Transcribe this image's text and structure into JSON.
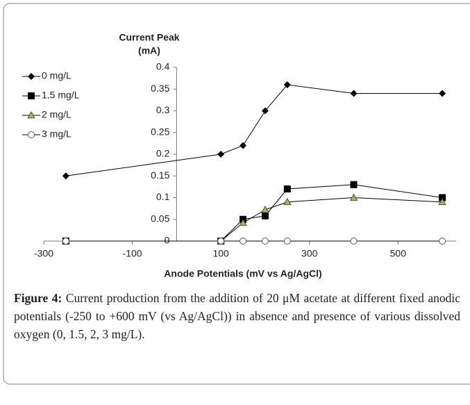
{
  "chart_data": {
    "type": "line",
    "ylabel_lines": [
      "Current Peak",
      "(mA)"
    ],
    "xlabel": "Anode Potentials (mV vs Ag/AgCl)",
    "x": [
      -250,
      100,
      150,
      200,
      250,
      400,
      600
    ],
    "series": [
      {
        "name": "0 mg/L",
        "color": "#000000",
        "marker": "diamond",
        "values": [
          0.15,
          0.2,
          0.22,
          0.3,
          0.36,
          0.34,
          0.34
        ]
      },
      {
        "name": "1.5 mg/L",
        "color": "#000000",
        "marker": "square",
        "values": [
          0,
          0,
          0.05,
          0.058,
          0.12,
          0.13,
          0.1
        ]
      },
      {
        "name": "2 mg/L",
        "color": "#000000",
        "marker": "triangle",
        "values": [
          0,
          0,
          0.042,
          0.072,
          0.09,
          0.1,
          0.09
        ]
      },
      {
        "name": "3 mg/L",
        "color": "#000000",
        "marker": "circle",
        "values": [
          0,
          0,
          0,
          0,
          0,
          0,
          0
        ]
      }
    ],
    "xlim": [
      -300,
      650
    ],
    "xticks": [
      -300,
      -100,
      100,
      300,
      500
    ],
    "ylim": [
      0,
      0.4
    ],
    "yticks": [
      0,
      0.05,
      0.1,
      0.15,
      0.2,
      0.25,
      0.3,
      0.35,
      0.4
    ],
    "legend": "upper-left",
    "triangle_fill": "#9bbb59"
  },
  "caption": {
    "label": "Figure 4:",
    "text": "Current production from the addition of 20 μM acetate at different fixed anodic potentials (-250 to +600 mV (vs Ag/AgCl)) in absence and presence of various dissolved oxygen (0, 1.5, 2, 3 mg/L)."
  }
}
